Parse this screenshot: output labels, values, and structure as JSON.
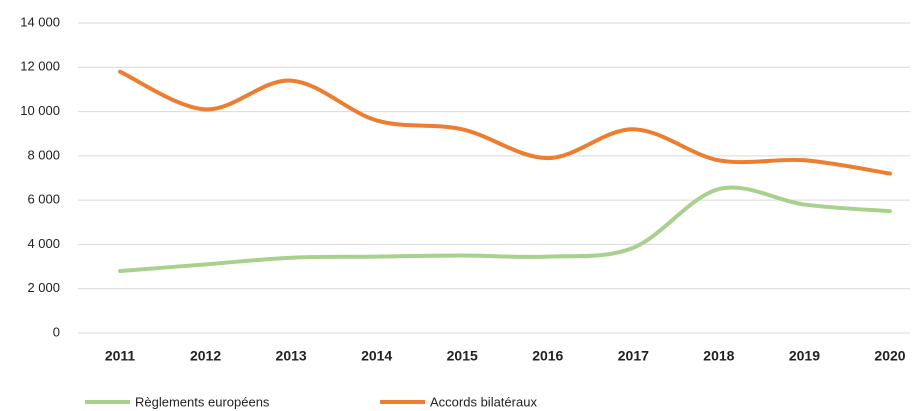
{
  "chart_data": {
    "type": "line",
    "categories": [
      "2011",
      "2012",
      "2013",
      "2014",
      "2015",
      "2016",
      "2017",
      "2018",
      "2019",
      "2020"
    ],
    "series": [
      {
        "name": "Règlements européens",
        "color": "#a9d18e",
        "values": [
          2800,
          3100,
          3400,
          3450,
          3500,
          3450,
          3850,
          6500,
          5800,
          5500
        ]
      },
      {
        "name": "Accords bilatéraux",
        "color": "#ed7d31",
        "values": [
          11800,
          10100,
          11400,
          9600,
          9200,
          7900,
          9200,
          7800,
          7800,
          7200
        ]
      }
    ],
    "ylim": [
      0,
      14000
    ],
    "yticks": [
      0,
      {
        "value": 2000,
        "label": "2 000"
      },
      {
        "value": 4000,
        "label": "4 000"
      },
      {
        "value": 6000,
        "label": "6 000"
      },
      {
        "value": 8000,
        "label": "8 000"
      },
      {
        "value": 10000,
        "label": "10 000"
      },
      {
        "value": 12000,
        "label": "12 000"
      },
      {
        "value": 14000,
        "label": "14 000"
      }
    ],
    "grid": true,
    "legend": "bottom"
  }
}
